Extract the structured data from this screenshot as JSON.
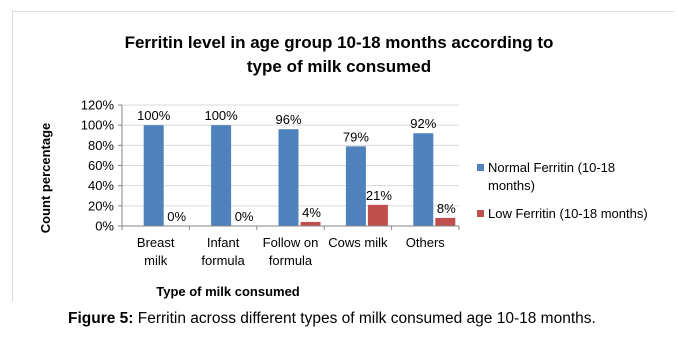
{
  "chart_data": {
    "type": "bar",
    "title": [
      "Ferritin level in age group 10-18 months according to",
      "type of milk consumed"
    ],
    "xlabel": "Type of milk consumed",
    "ylabel": "Count percentage",
    "ylim": [
      0,
      120
    ],
    "y_ticks": [
      "0%",
      "20%",
      "40%",
      "60%",
      "80%",
      "100%",
      "120%"
    ],
    "grid": true,
    "legend_position": "right",
    "categories": [
      [
        "Breast",
        "milk"
      ],
      [
        "Infant",
        "formula"
      ],
      [
        "Follow on",
        "formula"
      ],
      [
        "Cows milk"
      ],
      [
        "Others"
      ]
    ],
    "series": [
      {
        "name": [
          "Normal Ferritin (10-18",
          "months)"
        ],
        "color": "#4f81bd",
        "values": [
          100,
          100,
          96,
          79,
          92
        ],
        "labels": [
          "100%",
          "100%",
          "96%",
          "79%",
          "92%"
        ]
      },
      {
        "name": [
          "Low Ferritin (10-18 months)"
        ],
        "color": "#c0504d",
        "values": [
          0,
          0,
          4,
          21,
          8
        ],
        "labels": [
          "0%",
          "0%",
          "4%",
          "21%",
          "8%"
        ]
      }
    ]
  },
  "caption": {
    "label": "Figure 5:",
    "text": " Ferritin across different types of milk consumed age 10-18 months."
  }
}
